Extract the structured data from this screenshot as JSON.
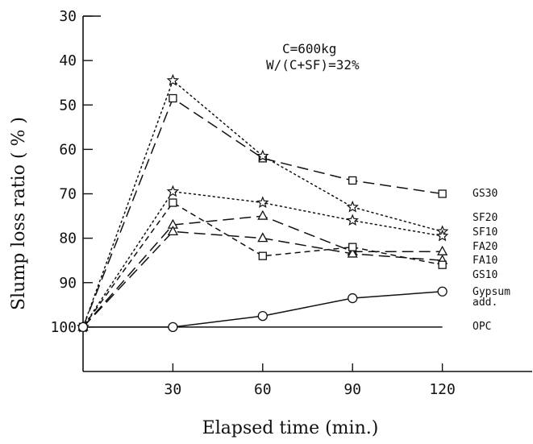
{
  "chart_data": {
    "type": "line",
    "xlabel": "Elapsed time (min.)",
    "ylabel": "Slump loss ratio ( % )",
    "x": [
      0,
      30,
      60,
      90,
      120
    ],
    "xticks": [
      "30",
      "60",
      "90",
      "120"
    ],
    "xtick_values": [
      30,
      60,
      90,
      120
    ],
    "yticks": [
      "30",
      "40",
      "50",
      "60",
      "70",
      "80",
      "90",
      "100"
    ],
    "ytick_values": [
      30,
      40,
      50,
      60,
      70,
      80,
      90,
      100
    ],
    "xlim": [
      0,
      150
    ],
    "ylim": [
      110,
      30
    ],
    "annotation_lines": [
      "C=600kg",
      "W/(C+SF)=32%"
    ],
    "series": [
      {
        "name": "GS30",
        "label_lines": [
          "GS30"
        ],
        "marker": "square",
        "dash": "long",
        "values": [
          100,
          48.5,
          62,
          67,
          70
        ]
      },
      {
        "name": "SF20",
        "label_lines": [
          "SF20"
        ],
        "marker": "star",
        "dash": "dot",
        "values": [
          100,
          44.5,
          61.5,
          73,
          78.5
        ]
      },
      {
        "name": "SF10",
        "label_lines": [
          "SF10"
        ],
        "marker": "star",
        "dash": "dot",
        "values": [
          100,
          69.5,
          72,
          76,
          79.5
        ]
      },
      {
        "name": "FA20",
        "label_lines": [
          "FA20"
        ],
        "marker": "triangle",
        "dash": "long",
        "values": [
          100,
          77,
          75,
          83,
          83
        ]
      },
      {
        "name": "FA10",
        "label_lines": [
          "FA10"
        ],
        "marker": "triangle",
        "dash": "long",
        "values": [
          100,
          78.5,
          80,
          83.5,
          85
        ]
      },
      {
        "name": "GS10",
        "label_lines": [
          "GS10"
        ],
        "marker": "square",
        "dash": "short",
        "values": [
          100,
          72,
          84,
          82,
          86
        ]
      },
      {
        "name": "Gypsum add.",
        "label_lines": [
          "Gypsum",
          "add."
        ],
        "marker": "circle",
        "dash": "solid",
        "values": [
          100,
          100,
          97.5,
          93.5,
          92
        ]
      },
      {
        "name": "OPC",
        "label_lines": [
          "OPC"
        ],
        "marker": "none",
        "dash": "solid",
        "values": [
          100,
          100,
          100,
          100,
          100
        ]
      }
    ]
  }
}
